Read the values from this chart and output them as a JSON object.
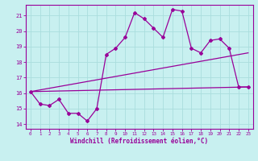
{
  "xlabel": "Windchill (Refroidissement éolien,°C)",
  "bg_color": "#c8f0f0",
  "line_color": "#990099",
  "grid_color": "#aadddd",
  "x_ticks": [
    0,
    1,
    2,
    3,
    4,
    5,
    6,
    7,
    8,
    9,
    10,
    11,
    12,
    13,
    14,
    15,
    16,
    17,
    18,
    19,
    20,
    21,
    22,
    23
  ],
  "y_ticks": [
    14,
    15,
    16,
    17,
    18,
    19,
    20,
    21
  ],
  "ylim": [
    13.7,
    21.7
  ],
  "xlim": [
    -0.5,
    23.5
  ],
  "series1": [
    16.1,
    15.3,
    15.2,
    15.6,
    14.7,
    14.7,
    14.2,
    15.0,
    18.5,
    18.9,
    19.6,
    21.2,
    20.8,
    20.2,
    19.6,
    21.4,
    21.3,
    18.9,
    18.6,
    19.4,
    19.5,
    18.9,
    16.4,
    16.4
  ],
  "series2_x": [
    0,
    23
  ],
  "series2_y": [
    16.1,
    16.4
  ],
  "series3_x": [
    0,
    23
  ],
  "series3_y": [
    16.1,
    18.6
  ]
}
